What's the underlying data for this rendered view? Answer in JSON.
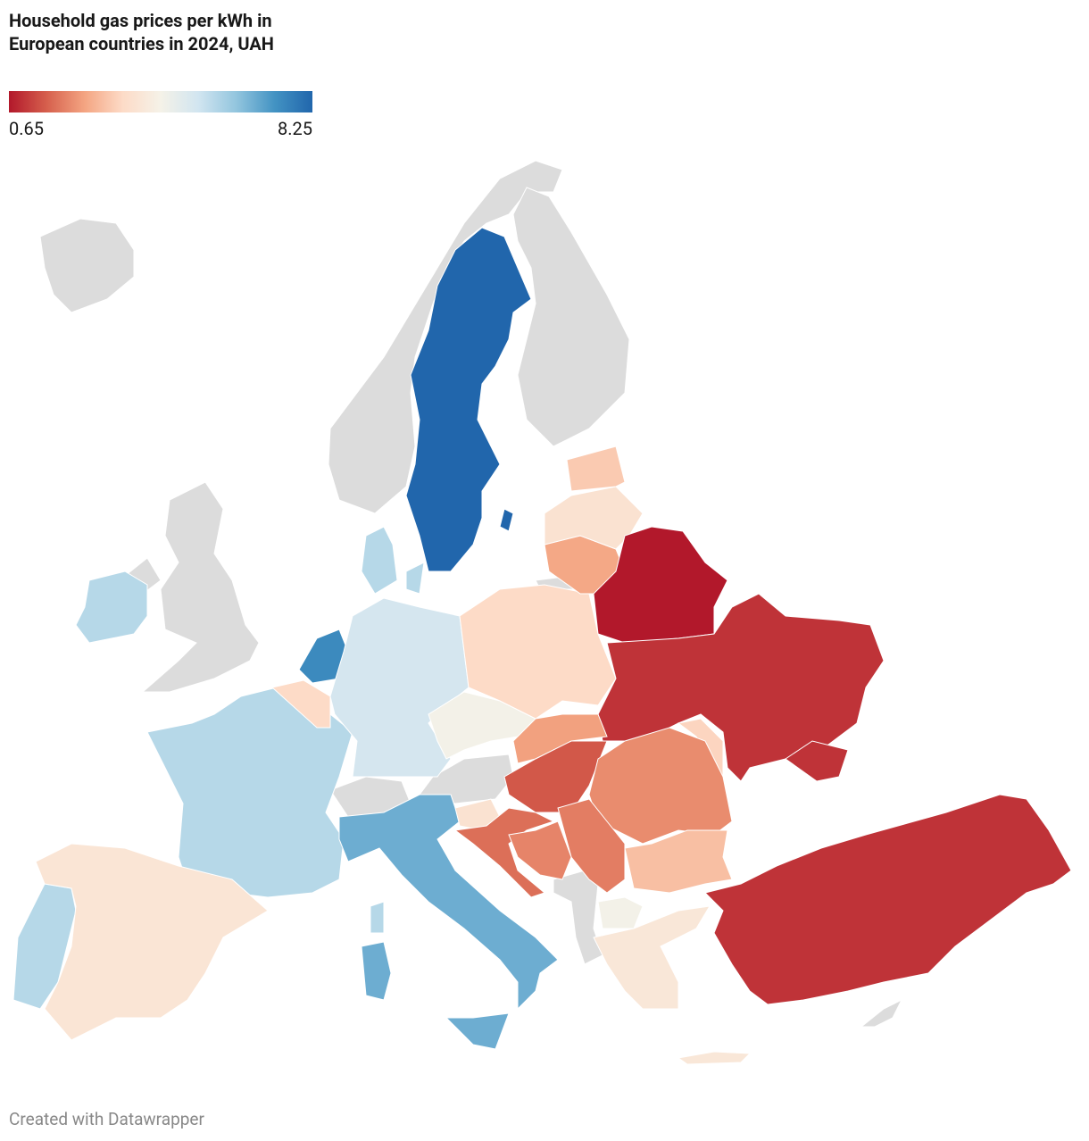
{
  "map": {
    "title": "Household gas prices per kWh in European countries in 2024, UAH",
    "legend": {
      "min": 0.65,
      "max": 8.25,
      "colors": [
        "#b2182b",
        "#d6604d",
        "#f4a582",
        "#fddbc7",
        "#f5f2e8",
        "#d1e5f0",
        "#92c5de",
        "#4393c3",
        "#2166ac"
      ]
    },
    "footer": "Created with Datawrapper",
    "regions": [
      {
        "value": 8.25
      },
      {
        "value": 8.25
      },
      {
        "value": 7.5
      },
      {
        "value": 5.8
      },
      {
        "value": 5.8
      },
      {
        "value": 5.8
      },
      {
        "value": 5.8
      },
      {
        "value": 5.8
      },
      {
        "value": 5.8
      },
      {
        "value": 3.9
      },
      {
        "value": 5.3
      },
      {
        "value": 3.5
      },
      {
        "value": 6.8
      },
      {
        "value": 6.8
      },
      {
        "value": 6.8
      },
      {
        "value": 4.5
      },
      {
        "value": 3.8
      },
      {
        "value": 3.5
      },
      {
        "value": 2.6
      },
      {
        "value": 3.8
      },
      {
        "value": 3.2
      },
      {
        "value": 0.65
      },
      {
        "value": 1.0
      },
      {
        "value": 1.0
      },
      {
        "value": 3.4
      },
      {
        "value": 2.5
      },
      {
        "value": 1.5
      },
      {
        "value": 2.2
      },
      {
        "value": 2.0
      },
      {
        "value": 1.8
      },
      {
        "value": 2.1
      },
      {
        "value": 3.0
      },
      {
        "value": 4.5
      },
      {
        "value": 4.0
      },
      {
        "value": 4.0
      },
      {
        "value": 1.0
      }
    ]
  }
}
